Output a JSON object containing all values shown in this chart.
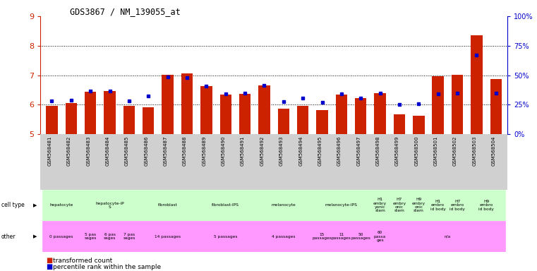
{
  "title": "GDS3867 / NM_139055_at",
  "gsm_labels": [
    "GSM568481",
    "GSM568482",
    "GSM568483",
    "GSM568484",
    "GSM568485",
    "GSM568486",
    "GSM568487",
    "GSM568488",
    "GSM568489",
    "GSM568490",
    "GSM568491",
    "GSM568492",
    "GSM568493",
    "GSM568494",
    "GSM568495",
    "GSM568496",
    "GSM568497",
    "GSM568498",
    "GSM568499",
    "GSM568500",
    "GSM568501",
    "GSM568502",
    "GSM568503",
    "GSM568504"
  ],
  "red_values": [
    5.97,
    6.05,
    6.45,
    6.47,
    5.97,
    5.92,
    7.02,
    7.05,
    6.63,
    6.35,
    6.37,
    6.65,
    5.87,
    5.95,
    5.82,
    6.35,
    6.23,
    6.38,
    5.68,
    5.62,
    6.97,
    7.02,
    8.35,
    6.88
  ],
  "blue_values": [
    6.12,
    6.14,
    6.46,
    6.46,
    6.12,
    6.3,
    6.93,
    6.92,
    6.64,
    6.37,
    6.38,
    6.66,
    6.1,
    6.22,
    6.08,
    6.36,
    6.23,
    6.4,
    6.0,
    6.02,
    6.37,
    6.38,
    7.68,
    6.4
  ],
  "ymin": 5.0,
  "ymax": 9.0,
  "yticks": [
    5,
    6,
    7,
    8,
    9
  ],
  "right_ytick_positions": [
    5.0,
    6.0,
    7.0,
    8.0,
    9.0
  ],
  "right_ytick_labels": [
    "0%",
    "25%",
    "50%",
    "75%",
    "100%"
  ],
  "cell_type_groups": [
    {
      "label": "hepatocyte",
      "start": 0,
      "end": 2,
      "color": "#ccffcc"
    },
    {
      "label": "hepatocyte-iP\nS",
      "start": 2,
      "end": 5,
      "color": "#ccffcc"
    },
    {
      "label": "fibroblast",
      "start": 5,
      "end": 8,
      "color": "#ccffcc"
    },
    {
      "label": "fibroblast-IPS",
      "start": 8,
      "end": 11,
      "color": "#ccffcc"
    },
    {
      "label": "melanocyte",
      "start": 11,
      "end": 14,
      "color": "#ccffcc"
    },
    {
      "label": "melanocyte-IPS",
      "start": 14,
      "end": 17,
      "color": "#ccffcc"
    },
    {
      "label": "H1\nembry\nyonic\nstem",
      "start": 17,
      "end": 18,
      "color": "#ccffcc"
    },
    {
      "label": "H7\nembry\nonic\nstem",
      "start": 18,
      "end": 19,
      "color": "#ccffcc"
    },
    {
      "label": "H9\nembry\nonic\nstem",
      "start": 19,
      "end": 20,
      "color": "#ccffcc"
    },
    {
      "label": "H1\nembro\nid body",
      "start": 20,
      "end": 21,
      "color": "#ccffcc"
    },
    {
      "label": "H7\nembro\nid body",
      "start": 21,
      "end": 22,
      "color": "#ccffcc"
    },
    {
      "label": "H9\nembro\nid body",
      "start": 22,
      "end": 24,
      "color": "#ccffcc"
    }
  ],
  "other_groups": [
    {
      "label": "0 passages",
      "start": 0,
      "end": 2,
      "color": "#ff99ff"
    },
    {
      "label": "5 pas\nsages",
      "start": 2,
      "end": 3,
      "color": "#ff99ff"
    },
    {
      "label": "6 pas\nsages",
      "start": 3,
      "end": 4,
      "color": "#ff99ff"
    },
    {
      "label": "7 pas\nsages",
      "start": 4,
      "end": 5,
      "color": "#ff99ff"
    },
    {
      "label": "14 passages",
      "start": 5,
      "end": 8,
      "color": "#ff99ff"
    },
    {
      "label": "5 passages",
      "start": 8,
      "end": 11,
      "color": "#ff99ff"
    },
    {
      "label": "4 passages",
      "start": 11,
      "end": 14,
      "color": "#ff99ff"
    },
    {
      "label": "15\npassages",
      "start": 14,
      "end": 15,
      "color": "#ff99ff"
    },
    {
      "label": "11\npassages",
      "start": 15,
      "end": 16,
      "color": "#ff99ff"
    },
    {
      "label": "50\npassages",
      "start": 16,
      "end": 17,
      "color": "#ff99ff"
    },
    {
      "label": "60\npassa\nges",
      "start": 17,
      "end": 18,
      "color": "#ff99ff"
    },
    {
      "label": "n/a",
      "start": 18,
      "end": 24,
      "color": "#ff99ff"
    }
  ],
  "bar_color": "#cc2200",
  "dot_color": "#0000cc",
  "gray_bg": "#d0d0d0",
  "cell_type_color": "#ccffcc",
  "other_color": "#ff99ff",
  "tick_label_color": "#cc2200",
  "right_tick_label_color": "#0000cc",
  "legend_red_label": "transformed count",
  "legend_blue_label": "percentile rank within the sample",
  "cell_type_row_label": "cell type",
  "other_row_label": "other"
}
